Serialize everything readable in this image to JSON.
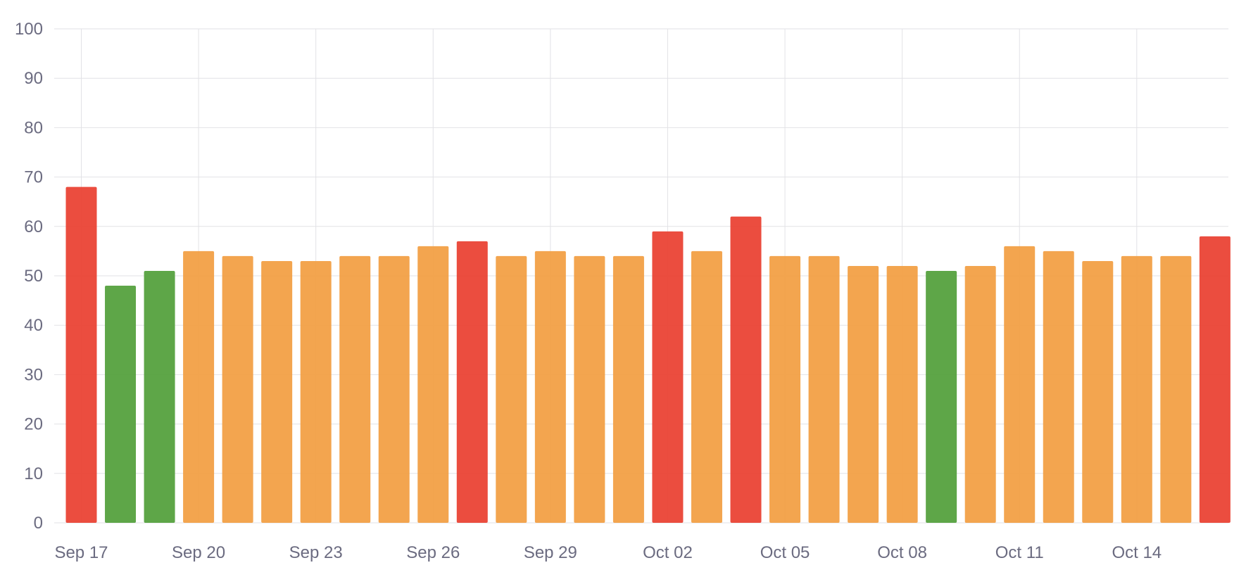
{
  "chart_data": {
    "type": "bar",
    "ylim": [
      0,
      100
    ],
    "y_ticks": [
      0,
      10,
      20,
      30,
      40,
      50,
      60,
      70,
      80,
      90,
      100
    ],
    "grid": true,
    "legend": "none",
    "x_tick_labels": [
      "Sep 17",
      "Sep 20",
      "Sep 23",
      "Sep 26",
      "Sep 29",
      "Oct 02",
      "Oct 05",
      "Oct 08",
      "Oct 11",
      "Oct 14"
    ],
    "x_tick_category_index": [
      0,
      3,
      6,
      9,
      12,
      15,
      18,
      21,
      24,
      27
    ],
    "categories": [
      "Sep 17",
      "Sep 18",
      "Sep 19",
      "Sep 20",
      "Sep 21",
      "Sep 22",
      "Sep 23",
      "Sep 24",
      "Sep 25",
      "Sep 26",
      "Sep 27",
      "Sep 28",
      "Sep 29",
      "Sep 30",
      "Oct 01",
      "Oct 02",
      "Oct 03",
      "Oct 04",
      "Oct 05",
      "Oct 06",
      "Oct 07",
      "Oct 08",
      "Oct 09",
      "Oct 10",
      "Oct 11",
      "Oct 12",
      "Oct 13",
      "Oct 14",
      "Oct 15",
      "Oct 16"
    ],
    "values": [
      68,
      48,
      51,
      55,
      54,
      53,
      53,
      54,
      54,
      56,
      57,
      54,
      55,
      54,
      54,
      59,
      55,
      62,
      54,
      54,
      52,
      52,
      51,
      52,
      56,
      55,
      53,
      54,
      54,
      58
    ],
    "bar_status": [
      "red",
      "green",
      "green",
      "orange",
      "orange",
      "orange",
      "orange",
      "orange",
      "orange",
      "orange",
      "red",
      "orange",
      "orange",
      "orange",
      "orange",
      "red",
      "orange",
      "red",
      "orange",
      "orange",
      "orange",
      "orange",
      "green",
      "orange",
      "orange",
      "orange",
      "orange",
      "orange",
      "orange",
      "red"
    ],
    "status_colors": {
      "red": "#ea4335",
      "green": "#55a13e",
      "orange": "#f2a046"
    }
  }
}
